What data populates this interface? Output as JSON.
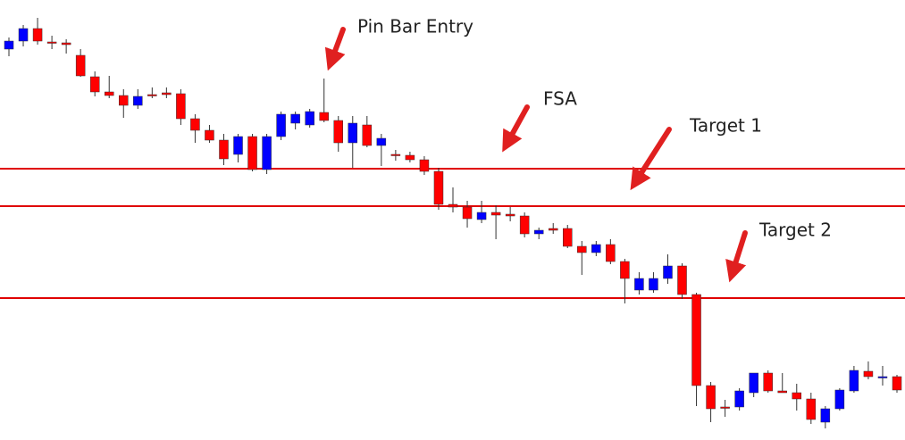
{
  "chart_data": {
    "type": "candlestick",
    "ylim": [
      0,
      493
    ],
    "open": [
      438,
      447,
      461,
      446,
      445,
      431,
      407,
      390,
      386,
      375,
      387,
      389,
      388,
      360,
      347,
      336,
      320,
      340,
      303,
      340,
      355,
      353,
      367,
      358,
      333,
      353,
      330,
      320,
      319,
      314,
      301,
      264,
      261,
      247,
      255,
      253,
      251,
      231,
      237,
      237,
      217,
      210,
      219,
      200,
      168,
      168,
      181,
      195,
      163,
      61,
      37,
      37,
      53,
      75,
      55,
      53,
      46,
      20,
      35,
      55,
      77,
      71,
      71
    ],
    "high": [
      451,
      465,
      473,
      453,
      449,
      438,
      413,
      408,
      393,
      393,
      395,
      395,
      393,
      365,
      353,
      343,
      343,
      343,
      343,
      368,
      368,
      371,
      405,
      363,
      363,
      363,
      343,
      325,
      323,
      318,
      305,
      283,
      268,
      268,
      263,
      261,
      255,
      238,
      243,
      241,
      223,
      223,
      225,
      203,
      188,
      188,
      208,
      198,
      165,
      65,
      45,
      58,
      75,
      78,
      75,
      63,
      53,
      38,
      58,
      83,
      88,
      83,
      73
    ],
    "low": [
      430,
      441,
      443,
      438,
      433,
      407,
      385,
      383,
      361,
      371,
      383,
      383,
      353,
      333,
      333,
      308,
      311,
      301,
      298,
      336,
      348,
      350,
      356,
      323,
      305,
      328,
      307,
      313,
      311,
      297,
      258,
      255,
      238,
      243,
      225,
      245,
      227,
      225,
      231,
      215,
      185,
      206,
      197,
      153,
      163,
      165,
      175,
      158,
      38,
      20,
      26,
      33,
      48,
      53,
      53,
      33,
      18,
      13,
      33,
      53,
      68,
      61,
      53
    ],
    "close": [
      447,
      461,
      447,
      445,
      443,
      408,
      390,
      386,
      375,
      385,
      386,
      387,
      360,
      347,
      336,
      315,
      340,
      303,
      340,
      365,
      365,
      368,
      358,
      333,
      355,
      330,
      338,
      319,
      314,
      301,
      264,
      261,
      248,
      255,
      252,
      251,
      231,
      235,
      235,
      217,
      210,
      219,
      200,
      181,
      181,
      181,
      195,
      163,
      61,
      35,
      36,
      55,
      75,
      55,
      53,
      46,
      23,
      35,
      56,
      78,
      71,
      71,
      56
    ],
    "up_color": "#0000ff",
    "down_color": "#ff0000",
    "levels": [
      304,
      262,
      159
    ],
    "level_color": "#e00000",
    "annotations": [
      "Pin Bar Entry",
      "FSA",
      "Target 1",
      "Target 2"
    ]
  }
}
